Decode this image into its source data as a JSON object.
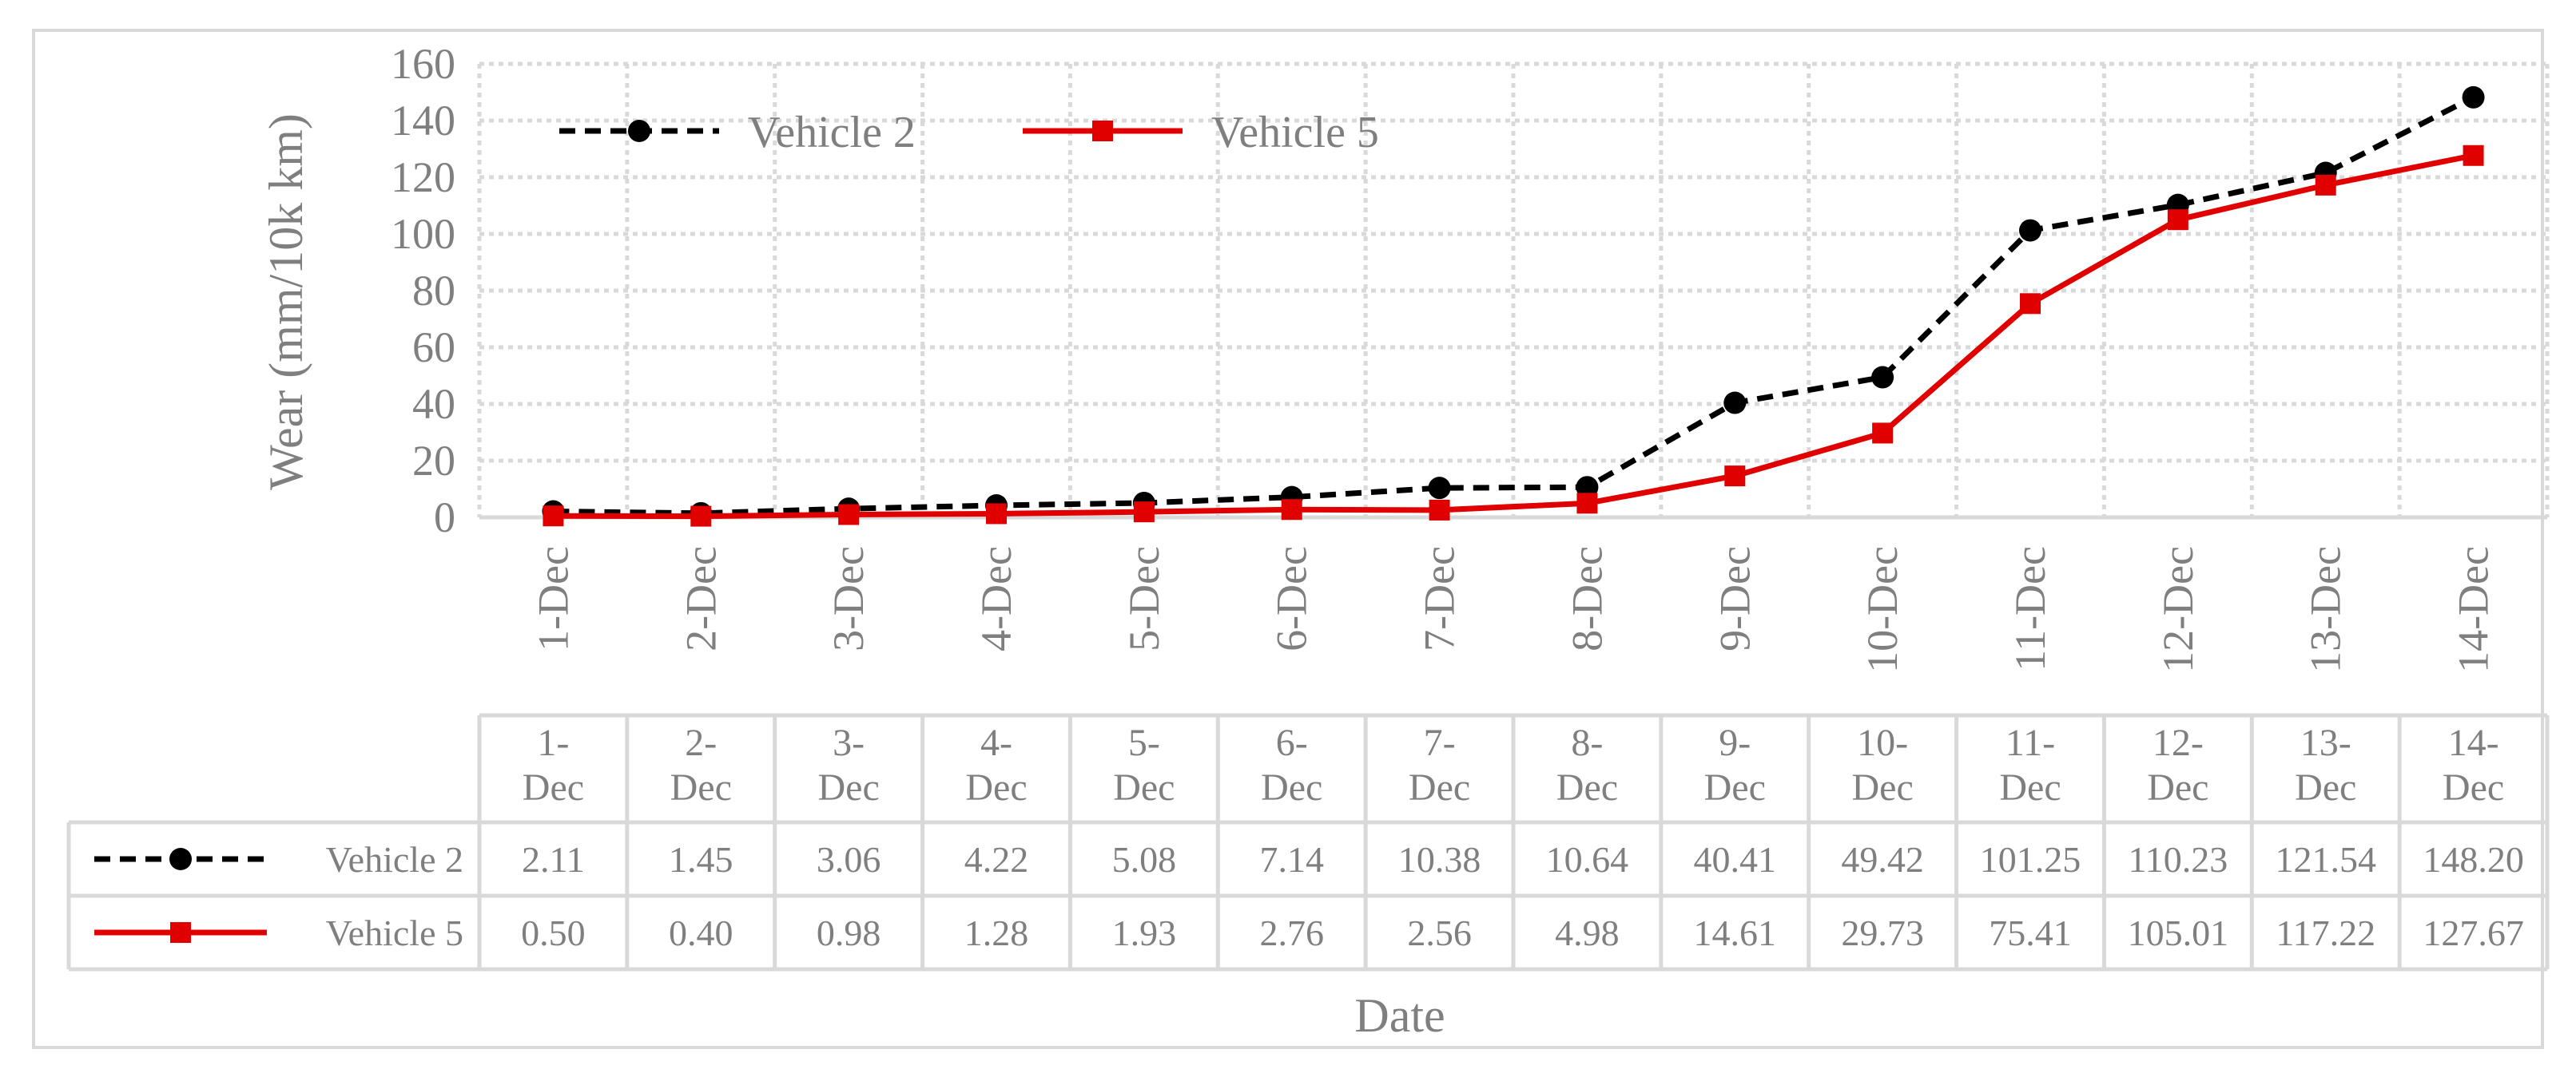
{
  "chart_data": {
    "type": "line",
    "title": "",
    "xlabel": "Date",
    "ylabel": "Wear (mm/10k km)",
    "ylim": [
      0,
      160
    ],
    "yticks": [
      0,
      20,
      40,
      60,
      80,
      100,
      120,
      140,
      160
    ],
    "grid": true,
    "legend_position": "top-left",
    "data_table": true,
    "categories": [
      "1-Dec",
      "2-Dec",
      "3-Dec",
      "4-Dec",
      "5-Dec",
      "6-Dec",
      "7-Dec",
      "8-Dec",
      "9-Dec",
      "10-Dec",
      "11-Dec",
      "12-Dec",
      "13-Dec",
      "14-Dec"
    ],
    "series": [
      {
        "name": "Vehicle 2",
        "color": "#000000",
        "line_style": "dashed",
        "marker": "circle",
        "values": [
          2.11,
          1.45,
          3.06,
          4.22,
          5.08,
          7.14,
          10.38,
          10.64,
          40.41,
          49.42,
          101.25,
          110.23,
          121.54,
          148.2
        ],
        "value_labels": [
          "2.11",
          "1.45",
          "3.06",
          "4.22",
          "5.08",
          "7.14",
          "10.38",
          "10.64",
          "40.41",
          "49.42",
          "101.25",
          "110.23",
          "121.54",
          "148.20"
        ]
      },
      {
        "name": "Vehicle 5",
        "color": "#e00000",
        "line_style": "solid",
        "marker": "square",
        "values": [
          0.5,
          0.4,
          0.98,
          1.28,
          1.93,
          2.76,
          2.56,
          4.98,
          14.61,
          29.73,
          75.41,
          105.01,
          117.22,
          127.67
        ],
        "value_labels": [
          "0.50",
          "0.40",
          "0.98",
          "1.28",
          "1.93",
          "2.76",
          "2.56",
          "4.98",
          "14.61",
          "29.73",
          "75.41",
          "105.01",
          "117.22",
          "127.67"
        ]
      }
    ]
  }
}
